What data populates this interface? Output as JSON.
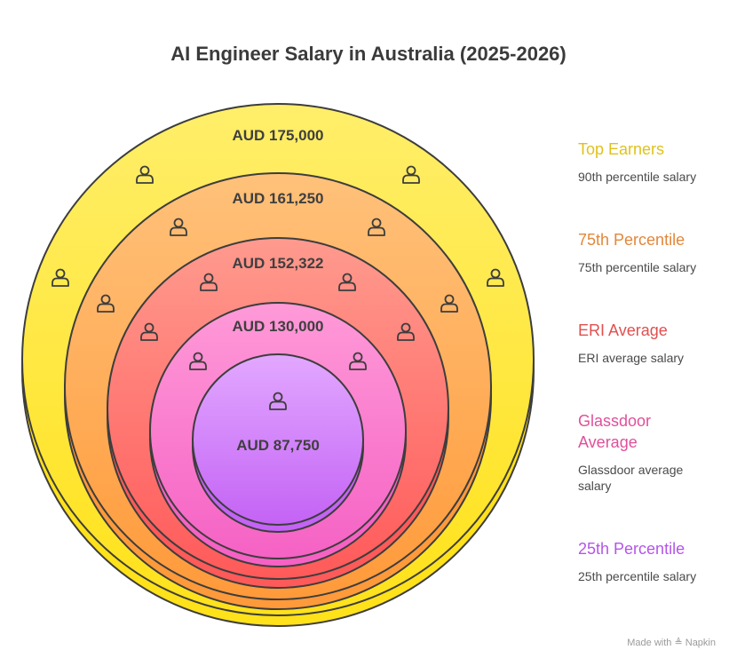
{
  "title": "AI Engineer Salary in Australia (2025-2026)",
  "rings": [
    {
      "value_label": "AUD 175,000",
      "legend_title": "Top Earners",
      "legend_desc": "90th percentile salary",
      "color": "#e0c21a",
      "fill_top": "#ffee6a",
      "fill_bottom": "#ffe21a"
    },
    {
      "value_label": "AUD 161,250",
      "legend_title": "75th Percentile",
      "legend_desc": "75th percentile salary",
      "color": "#e2873a",
      "fill_top": "#ffc17a",
      "fill_bottom": "#ff9a3a"
    },
    {
      "value_label": "AUD 152,322",
      "legend_title": "ERI Average",
      "legend_desc": "ERI average salary",
      "color": "#e05050",
      "fill_top": "#ff9a8e",
      "fill_bottom": "#ff5a5a"
    },
    {
      "value_label": "AUD 130,000",
      "legend_title": "Glassdoor Average",
      "legend_desc": "Glassdoor average salary",
      "color": "#e0509a",
      "fill_top": "#ff9ad8",
      "fill_bottom": "#f562c4"
    },
    {
      "value_label": "AUD 87,750",
      "legend_title": "25th Percentile",
      "legend_desc": "25th percentile salary",
      "color": "#b455e8",
      "fill_top": "#e2a8ff",
      "fill_bottom": "#c463f5"
    }
  ],
  "icon": "person-icon",
  "footer": {
    "prefix": "Made with",
    "brand": "Napkin",
    "brand_icon": "napkin-logo-icon"
  }
}
